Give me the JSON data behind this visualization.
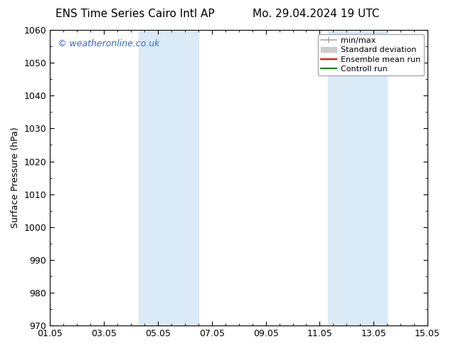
{
  "title_left": "ENS Time Series Cairo Intl AP",
  "title_right": "Mo. 29.04.2024 19 UTC",
  "ylabel": "Surface Pressure (hPa)",
  "ylim": [
    970,
    1060
  ],
  "yticks": [
    970,
    980,
    990,
    1000,
    1010,
    1020,
    1030,
    1040,
    1050,
    1060
  ],
  "xtick_labels": [
    "01.05",
    "03.05",
    "05.05",
    "07.05",
    "09.05",
    "11.05",
    "13.05",
    "15.05"
  ],
  "xtick_positions": [
    0,
    2,
    4,
    6,
    8,
    10,
    12,
    14
  ],
  "xlim": [
    0,
    14
  ],
  "shaded_regions": [
    {
      "xstart": 3.3,
      "xend": 5.5
    },
    {
      "xstart": 10.3,
      "xend": 12.5
    }
  ],
  "shaded_color": "#daeaf7",
  "watermark": "© weatheronline.co.uk",
  "watermark_color": "#3366cc",
  "background_color": "#ffffff",
  "legend_items": [
    {
      "label": "min/max"
    },
    {
      "label": "Standard deviation"
    },
    {
      "label": "Ensemble mean run"
    },
    {
      "label": "Controll run"
    }
  ],
  "legend_line_colors": [
    "#aaaaaa",
    "#cccccc",
    "#ff0000",
    "#008000"
  ],
  "title_fontsize": 11,
  "axis_fontsize": 9,
  "tick_fontsize": 9,
  "watermark_fontsize": 9,
  "legend_fontsize": 8
}
